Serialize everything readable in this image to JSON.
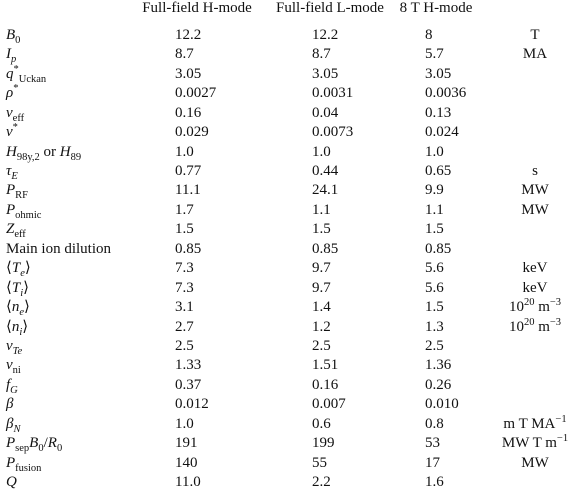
{
  "table": {
    "headers": [
      "Full-field H-mode",
      "Full-field L-mode",
      "8 T H-mode"
    ],
    "rows": [
      {
        "label": [
          {
            "text": "B",
            "italic": true
          },
          {
            "text": "0",
            "pos": "sub"
          }
        ],
        "values": [
          "12.2",
          "12.2",
          "8"
        ],
        "unit": [
          {
            "text": "T"
          }
        ]
      },
      {
        "label": [
          {
            "text": "I",
            "italic": true
          },
          {
            "text": "p",
            "pos": "sub",
            "italic": true
          }
        ],
        "values": [
          "8.7",
          "8.7",
          "5.7"
        ],
        "unit": [
          {
            "text": "MA"
          }
        ]
      },
      {
        "label": [
          {
            "text": "q",
            "italic": true
          },
          {
            "text": "*",
            "pos": "sup"
          },
          {
            "text": "Uckan",
            "pos": "sub"
          }
        ],
        "values": [
          "3.05",
          "3.05",
          "3.05"
        ],
        "unit": []
      },
      {
        "label": [
          {
            "text": "ρ",
            "italic": true
          },
          {
            "text": "*",
            "pos": "sup"
          }
        ],
        "values": [
          "0.0027",
          "0.0031",
          "0.0036"
        ],
        "unit": []
      },
      {
        "label": [
          {
            "text": "ν",
            "italic": true
          },
          {
            "text": "eff",
            "pos": "sub"
          }
        ],
        "values": [
          "0.16",
          "0.04",
          "0.13"
        ],
        "unit": []
      },
      {
        "label": [
          {
            "text": "ν",
            "italic": true
          },
          {
            "text": "*",
            "pos": "sup"
          }
        ],
        "values": [
          "0.029",
          "0.0073",
          "0.024"
        ],
        "unit": []
      },
      {
        "label": [
          {
            "text": "H",
            "italic": true
          },
          {
            "text": "98y,2",
            "pos": "sub"
          },
          {
            "text": " or "
          },
          {
            "text": "H",
            "italic": true
          },
          {
            "text": "89",
            "pos": "sub"
          }
        ],
        "values": [
          "1.0",
          "1.0",
          "1.0"
        ],
        "unit": []
      },
      {
        "label": [
          {
            "text": "τ",
            "italic": true
          },
          {
            "text": "E",
            "pos": "sub",
            "italic": true
          }
        ],
        "values": [
          "0.77",
          "0.44",
          "0.65"
        ],
        "unit": [
          {
            "text": "s"
          }
        ]
      },
      {
        "label": [
          {
            "text": "P",
            "italic": true
          },
          {
            "text": "RF",
            "pos": "sub"
          }
        ],
        "values": [
          "11.1",
          "24.1",
          "9.9"
        ],
        "unit": [
          {
            "text": "MW"
          }
        ]
      },
      {
        "label": [
          {
            "text": "P",
            "italic": true
          },
          {
            "text": "ohmic",
            "pos": "sub"
          }
        ],
        "values": [
          "1.7",
          "1.1",
          "1.1"
        ],
        "unit": [
          {
            "text": "MW"
          }
        ]
      },
      {
        "label": [
          {
            "text": "Z",
            "italic": true
          },
          {
            "text": "eff",
            "pos": "sub"
          }
        ],
        "values": [
          "1.5",
          "1.5",
          "1.5"
        ],
        "unit": []
      },
      {
        "label": [
          {
            "text": "Main ion dilution"
          }
        ],
        "values": [
          "0.85",
          "0.85",
          "0.85"
        ],
        "unit": []
      },
      {
        "label": [
          {
            "text": "⟨"
          },
          {
            "text": "T",
            "italic": true
          },
          {
            "text": "e",
            "pos": "sub",
            "italic": true
          },
          {
            "text": "⟩"
          }
        ],
        "values": [
          "7.3",
          "9.7",
          "5.6"
        ],
        "unit": [
          {
            "text": "keV"
          }
        ]
      },
      {
        "label": [
          {
            "text": "⟨"
          },
          {
            "text": "T",
            "italic": true
          },
          {
            "text": "i",
            "pos": "sub",
            "italic": true
          },
          {
            "text": "⟩"
          }
        ],
        "values": [
          "7.3",
          "9.7",
          "5.6"
        ],
        "unit": [
          {
            "text": "keV"
          }
        ]
      },
      {
        "label": [
          {
            "text": "⟨"
          },
          {
            "text": "n",
            "italic": true
          },
          {
            "text": "e",
            "pos": "sub",
            "italic": true
          },
          {
            "text": "⟩"
          }
        ],
        "values": [
          "3.1",
          "1.4",
          "1.5"
        ],
        "unit": [
          {
            "text": "10"
          },
          {
            "text": "20",
            "pos": "sup"
          },
          {
            "text": " m"
          },
          {
            "text": "−3",
            "pos": "sup"
          }
        ]
      },
      {
        "label": [
          {
            "text": "⟨"
          },
          {
            "text": "n",
            "italic": true
          },
          {
            "text": "i",
            "pos": "sub",
            "italic": true
          },
          {
            "text": "⟩"
          }
        ],
        "values": [
          "2.7",
          "1.2",
          "1.3"
        ],
        "unit": [
          {
            "text": "10"
          },
          {
            "text": "20",
            "pos": "sup"
          },
          {
            "text": " m"
          },
          {
            "text": "−3",
            "pos": "sup"
          }
        ]
      },
      {
        "label": [
          {
            "text": "ν",
            "italic": true
          },
          {
            "text": "Te",
            "pos": "sub",
            "italic": true
          }
        ],
        "values": [
          "2.5",
          "2.5",
          "2.5"
        ],
        "unit": []
      },
      {
        "label": [
          {
            "text": "ν",
            "italic": true
          },
          {
            "text": "ni",
            "pos": "sub"
          }
        ],
        "values": [
          "1.33",
          "1.51",
          "1.36"
        ],
        "unit": []
      },
      {
        "label": [
          {
            "text": "f",
            "italic": true
          },
          {
            "text": "G",
            "pos": "sub",
            "italic": true
          }
        ],
        "values": [
          "0.37",
          "0.16",
          "0.26"
        ],
        "unit": []
      },
      {
        "label": [
          {
            "text": "β",
            "italic": true
          }
        ],
        "values": [
          "0.012",
          "0.007",
          "0.010"
        ],
        "unit": []
      },
      {
        "label": [
          {
            "text": "β",
            "italic": true
          },
          {
            "text": "N",
            "pos": "sub",
            "italic": true
          }
        ],
        "values": [
          "1.0",
          "0.6",
          "0.8"
        ],
        "unit": [
          {
            "text": "m T MA"
          },
          {
            "text": "−1",
            "pos": "sup"
          }
        ]
      },
      {
        "label": [
          {
            "text": "P",
            "italic": true
          },
          {
            "text": "sep",
            "pos": "sub"
          },
          {
            "text": "B",
            "italic": true
          },
          {
            "text": "0",
            "pos": "sub"
          },
          {
            "text": "/"
          },
          {
            "text": "R",
            "italic": true
          },
          {
            "text": "0",
            "pos": "sub"
          }
        ],
        "values": [
          "191",
          "199",
          "53"
        ],
        "unit": [
          {
            "text": "MW T m"
          },
          {
            "text": "−1",
            "pos": "sup"
          }
        ]
      },
      {
        "label": [
          {
            "text": "P",
            "italic": true
          },
          {
            "text": "fusion",
            "pos": "sub"
          }
        ],
        "values": [
          "140",
          "55",
          "17"
        ],
        "unit": [
          {
            "text": "MW"
          }
        ]
      },
      {
        "label": [
          {
            "text": "Q",
            "italic": true
          }
        ],
        "values": [
          "11.0",
          "2.2",
          "1.6"
        ],
        "unit": []
      }
    ]
  }
}
